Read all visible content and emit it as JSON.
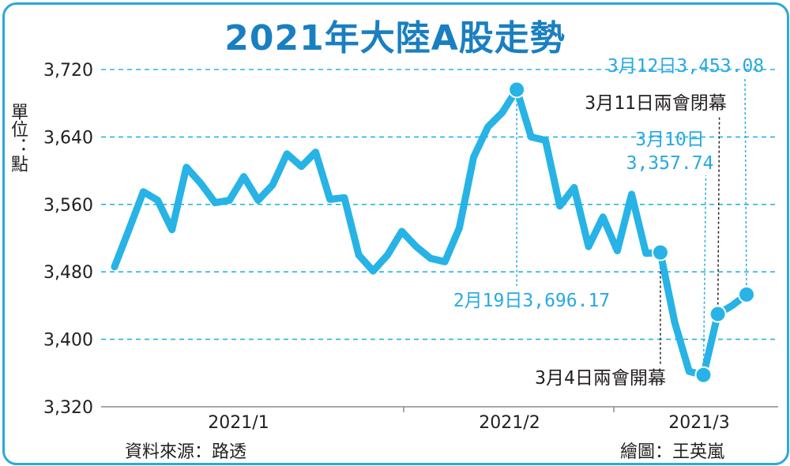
{
  "chart_data": {
    "type": "line",
    "title": "2021年大陸A股走勢",
    "ylabel": "單位：點",
    "ylim": [
      3320,
      3720
    ],
    "yticks": [
      3320,
      3400,
      3480,
      3560,
      3640,
      3720
    ],
    "ytick_labels": [
      "3,320",
      "3,400",
      "3,480",
      "3,560",
      "3,640",
      "3,720"
    ],
    "xtick_labels": [
      "2021/1",
      "2021/2",
      "2021/3"
    ],
    "grid": true,
    "line_color": "#27b3e6",
    "series": [
      {
        "values": [
          3486,
          3530,
          3575,
          3565,
          3530,
          3604,
          3585,
          3562,
          3565,
          3593,
          3565,
          3583,
          3620,
          3605,
          3622,
          3566,
          3568,
          3500,
          3481,
          3500,
          3528,
          3510,
          3496,
          3492,
          3532,
          3616,
          3652,
          3669,
          3696.17,
          3640,
          3636,
          3558,
          3580,
          3510,
          3545,
          3505,
          3572,
          3502,
          3503,
          3420,
          3362,
          3357.74,
          3430,
          3440,
          3453.08
        ]
      }
    ],
    "annotations": [
      {
        "text": "2月19日3,696.17",
        "index": 28,
        "color": "#27a9e1"
      },
      {
        "text": "3月4日兩會開幕",
        "index": 38,
        "color": "#231f20"
      },
      {
        "text": "3月10日",
        "index": 41,
        "color": "#27a9e1"
      },
      {
        "text": "3,357.74",
        "index": 41,
        "color": "#27a9e1"
      },
      {
        "text": "3月11日兩會閉幕",
        "index": 42,
        "color": "#231f20"
      },
      {
        "text": "3月12日3,453.08",
        "index": 44,
        "color": "#27a9e1"
      }
    ]
  },
  "footer": {
    "source": "資料來源：路透",
    "credit": "繪圖：王英嵐"
  }
}
